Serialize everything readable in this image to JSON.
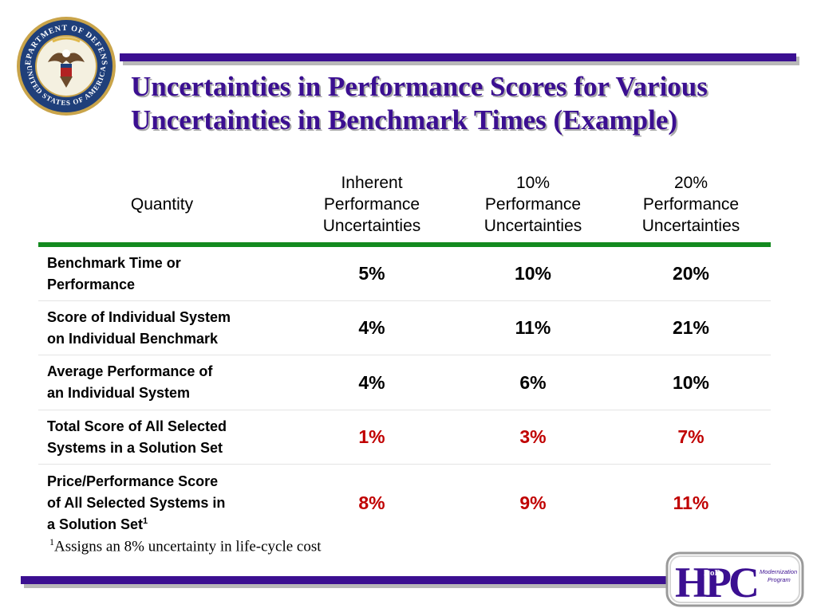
{
  "seal": {
    "text_top": "DEPARTMENT OF DEFENSE",
    "text_bottom": "UNITED STATES OF AMERICA"
  },
  "title": {
    "line1": "Uncertainties in Performance Scores for Various",
    "line2": "Uncertainties in Benchmark Times (Example)"
  },
  "table": {
    "headers": {
      "quantity": "Quantity",
      "col1": [
        "Inherent",
        "Performance",
        "Uncertainties"
      ],
      "col2": [
        "10%",
        "Performance",
        "Uncertainties"
      ],
      "col3": [
        "20%",
        "Performance",
        "Uncertainties"
      ]
    },
    "rows": [
      {
        "label": [
          "Benchmark Time or",
          "Performance"
        ],
        "values": [
          "5%",
          "10%",
          "20%"
        ]
      },
      {
        "label": [
          "Score of Individual System",
          "on Individual Benchmark"
        ],
        "values": [
          "4%",
          "11%",
          "21%"
        ]
      },
      {
        "label": [
          "Average Performance of",
          "an Individual System"
        ],
        "values": [
          "4%",
          "6%",
          "10%"
        ]
      },
      {
        "label": [
          "Total Score of All Selected",
          "Systems in a Solution Set"
        ],
        "values": [
          "1%",
          "3%",
          "7%"
        ]
      },
      {
        "label": [
          "Price/Performance Score",
          "of All Selected Systems in",
          "a Solution Set"
        ],
        "label_sup": "1",
        "values": [
          "8%",
          "9%",
          "11%"
        ]
      }
    ]
  },
  "footnote": {
    "marker": "1",
    "text": "Assigns an 8% uncertainty in life-cycle cost"
  },
  "logo": {
    "main": "HPC",
    "prefix": "DoD",
    "tag_line1": "Modernization",
    "tag_line2": "Program"
  },
  "colors": {
    "title": "#3b0f91",
    "bar": "#3b0f91",
    "header_rule": "#138a1f",
    "highlight": "#c00000"
  }
}
